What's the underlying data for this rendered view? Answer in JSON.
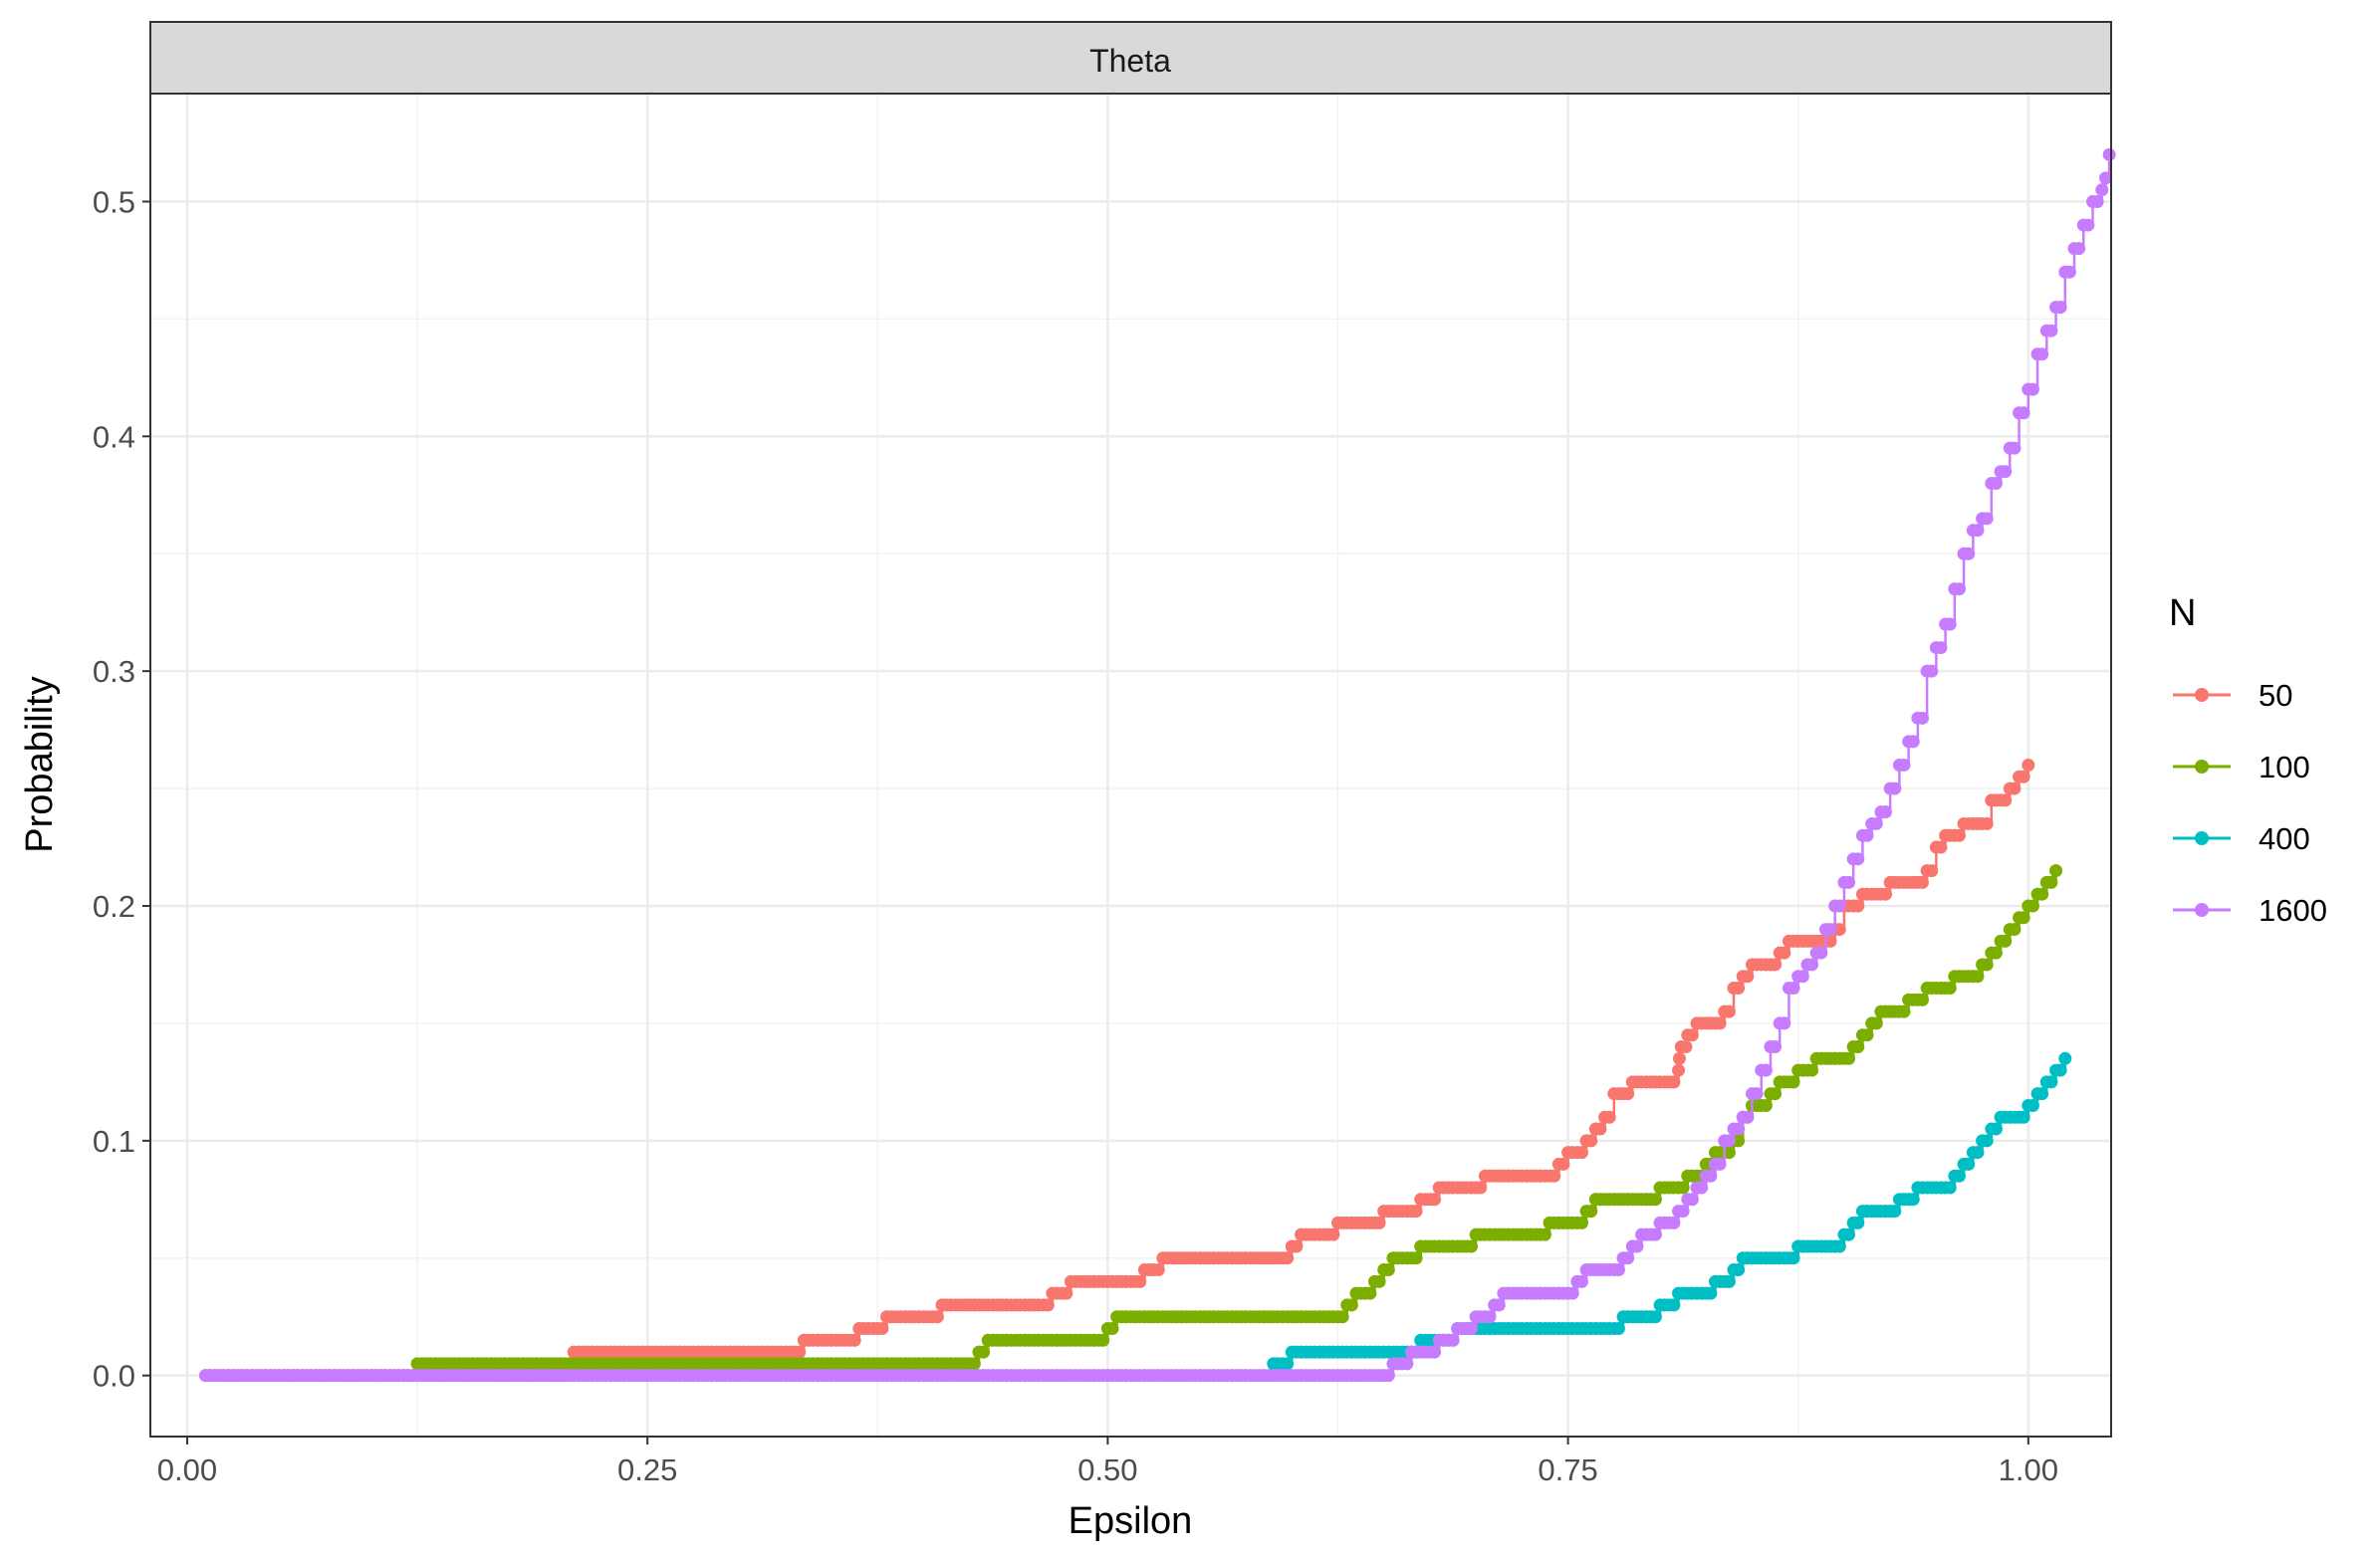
{
  "chart_data": {
    "type": "line",
    "facet_label": "Theta",
    "xlabel": "Epsilon",
    "ylabel": "Probability",
    "xlim": [
      -0.02,
      1.045
    ],
    "ylim": [
      -0.026,
      0.546
    ],
    "x_ticks": [
      0.0,
      0.25,
      0.5,
      0.75,
      1.0
    ],
    "x_tick_labels": [
      "0.00",
      "0.25",
      "0.50",
      "0.75",
      "1.00"
    ],
    "y_ticks": [
      0.0,
      0.1,
      0.2,
      0.3,
      0.4,
      0.5
    ],
    "y_tick_labels": [
      "0.0",
      "0.1",
      "0.2",
      "0.3",
      "0.4",
      "0.5"
    ],
    "grid": true,
    "legend": {
      "title": "N",
      "position": "right"
    },
    "series": [
      {
        "name": "50",
        "color": "#F8766D",
        "steps": [
          [
            0.01,
            0.0
          ],
          [
            0.21,
            0.01
          ],
          [
            0.335,
            0.015
          ],
          [
            0.365,
            0.02
          ],
          [
            0.38,
            0.025
          ],
          [
            0.41,
            0.03
          ],
          [
            0.47,
            0.035
          ],
          [
            0.48,
            0.04
          ],
          [
            0.52,
            0.045
          ],
          [
            0.53,
            0.05
          ],
          [
            0.6,
            0.055
          ],
          [
            0.605,
            0.06
          ],
          [
            0.625,
            0.065
          ],
          [
            0.65,
            0.07
          ],
          [
            0.67,
            0.075
          ],
          [
            0.68,
            0.08
          ],
          [
            0.705,
            0.085
          ],
          [
            0.745,
            0.09
          ],
          [
            0.75,
            0.095
          ],
          [
            0.76,
            0.1
          ],
          [
            0.765,
            0.105
          ],
          [
            0.77,
            0.11
          ],
          [
            0.775,
            0.12
          ],
          [
            0.785,
            0.125
          ],
          [
            0.81,
            0.13
          ],
          [
            0.8105,
            0.135
          ],
          [
            0.8115,
            0.14
          ],
          [
            0.815,
            0.145
          ],
          [
            0.82,
            0.15
          ],
          [
            0.835,
            0.155
          ],
          [
            0.84,
            0.165
          ],
          [
            0.845,
            0.17
          ],
          [
            0.85,
            0.175
          ],
          [
            0.865,
            0.18
          ],
          [
            0.87,
            0.185
          ],
          [
            0.895,
            0.19
          ],
          [
            0.9,
            0.2
          ],
          [
            0.91,
            0.205
          ],
          [
            0.925,
            0.21
          ],
          [
            0.945,
            0.215
          ],
          [
            0.95,
            0.225
          ],
          [
            0.955,
            0.23
          ],
          [
            0.965,
            0.235
          ],
          [
            0.98,
            0.245
          ],
          [
            0.99,
            0.25
          ],
          [
            0.995,
            0.255
          ],
          [
            1.0,
            0.26
          ]
        ]
      },
      {
        "name": "100",
        "color": "#7CAE00",
        "steps": [
          [
            0.125,
            0.005
          ],
          [
            0.43,
            0.01
          ],
          [
            0.435,
            0.015
          ],
          [
            0.5,
            0.02
          ],
          [
            0.505,
            0.025
          ],
          [
            0.63,
            0.03
          ],
          [
            0.635,
            0.035
          ],
          [
            0.645,
            0.04
          ],
          [
            0.65,
            0.045
          ],
          [
            0.655,
            0.05
          ],
          [
            0.67,
            0.055
          ],
          [
            0.7,
            0.06
          ],
          [
            0.74,
            0.065
          ],
          [
            0.76,
            0.07
          ],
          [
            0.765,
            0.075
          ],
          [
            0.8,
            0.08
          ],
          [
            0.815,
            0.085
          ],
          [
            0.825,
            0.09
          ],
          [
            0.83,
            0.095
          ],
          [
            0.84,
            0.1
          ],
          [
            0.845,
            0.11
          ],
          [
            0.85,
            0.115
          ],
          [
            0.86,
            0.12
          ],
          [
            0.865,
            0.125
          ],
          [
            0.875,
            0.13
          ],
          [
            0.885,
            0.135
          ],
          [
            0.905,
            0.14
          ],
          [
            0.91,
            0.145
          ],
          [
            0.915,
            0.15
          ],
          [
            0.92,
            0.155
          ],
          [
            0.935,
            0.16
          ],
          [
            0.945,
            0.165
          ],
          [
            0.96,
            0.17
          ],
          [
            0.975,
            0.175
          ],
          [
            0.98,
            0.18
          ],
          [
            0.985,
            0.185
          ],
          [
            0.99,
            0.19
          ],
          [
            0.995,
            0.195
          ],
          [
            1.0,
            0.2
          ],
          [
            1.005,
            0.205
          ],
          [
            1.01,
            0.21
          ],
          [
            1.015,
            0.215
          ]
        ]
      },
      {
        "name": "400",
        "color": "#00BFC4",
        "steps": [
          [
            0.59,
            0.005
          ],
          [
            0.6,
            0.01
          ],
          [
            0.67,
            0.015
          ],
          [
            0.69,
            0.02
          ],
          [
            0.78,
            0.025
          ],
          [
            0.8,
            0.03
          ],
          [
            0.81,
            0.035
          ],
          [
            0.83,
            0.04
          ],
          [
            0.84,
            0.045
          ],
          [
            0.845,
            0.05
          ],
          [
            0.875,
            0.055
          ],
          [
            0.9,
            0.06
          ],
          [
            0.905,
            0.065
          ],
          [
            0.91,
            0.07
          ],
          [
            0.93,
            0.075
          ],
          [
            0.94,
            0.08
          ],
          [
            0.96,
            0.085
          ],
          [
            0.965,
            0.09
          ],
          [
            0.97,
            0.095
          ],
          [
            0.975,
            0.1
          ],
          [
            0.98,
            0.105
          ],
          [
            0.985,
            0.11
          ],
          [
            1.0,
            0.115
          ],
          [
            1.005,
            0.12
          ],
          [
            1.01,
            0.125
          ],
          [
            1.015,
            0.13
          ],
          [
            1.02,
            0.135
          ]
        ]
      },
      {
        "name": "1600",
        "color": "#C77CFF",
        "steps": [
          [
            0.01,
            0.0
          ],
          [
            0.655,
            0.005
          ],
          [
            0.665,
            0.01
          ],
          [
            0.68,
            0.015
          ],
          [
            0.69,
            0.02
          ],
          [
            0.7,
            0.025
          ],
          [
            0.71,
            0.03
          ],
          [
            0.715,
            0.035
          ],
          [
            0.755,
            0.04
          ],
          [
            0.76,
            0.045
          ],
          [
            0.78,
            0.05
          ],
          [
            0.785,
            0.055
          ],
          [
            0.79,
            0.06
          ],
          [
            0.8,
            0.065
          ],
          [
            0.81,
            0.07
          ],
          [
            0.815,
            0.075
          ],
          [
            0.82,
            0.08
          ],
          [
            0.825,
            0.085
          ],
          [
            0.83,
            0.09
          ],
          [
            0.835,
            0.1
          ],
          [
            0.84,
            0.105
          ],
          [
            0.845,
            0.11
          ],
          [
            0.85,
            0.12
          ],
          [
            0.855,
            0.13
          ],
          [
            0.86,
            0.14
          ],
          [
            0.865,
            0.15
          ],
          [
            0.87,
            0.165
          ],
          [
            0.875,
            0.17
          ],
          [
            0.88,
            0.175
          ],
          [
            0.885,
            0.18
          ],
          [
            0.89,
            0.19
          ],
          [
            0.895,
            0.2
          ],
          [
            0.9,
            0.21
          ],
          [
            0.905,
            0.22
          ],
          [
            0.91,
            0.23
          ],
          [
            0.915,
            0.235
          ],
          [
            0.92,
            0.24
          ],
          [
            0.925,
            0.25
          ],
          [
            0.93,
            0.26
          ],
          [
            0.935,
            0.27
          ],
          [
            0.94,
            0.28
          ],
          [
            0.945,
            0.3
          ],
          [
            0.95,
            0.31
          ],
          [
            0.955,
            0.32
          ],
          [
            0.96,
            0.335
          ],
          [
            0.965,
            0.35
          ],
          [
            0.97,
            0.36
          ],
          [
            0.975,
            0.365
          ],
          [
            0.98,
            0.38
          ],
          [
            0.985,
            0.385
          ],
          [
            0.99,
            0.395
          ],
          [
            0.995,
            0.41
          ],
          [
            1.0,
            0.42
          ],
          [
            1.005,
            0.435
          ],
          [
            1.01,
            0.445
          ],
          [
            1.015,
            0.455
          ],
          [
            1.02,
            0.47
          ],
          [
            1.025,
            0.48
          ],
          [
            1.03,
            0.49
          ],
          [
            1.035,
            0.5
          ],
          [
            1.04,
            0.505
          ],
          [
            1.042,
            0.51
          ],
          [
            1.044,
            0.52
          ]
        ]
      }
    ]
  }
}
